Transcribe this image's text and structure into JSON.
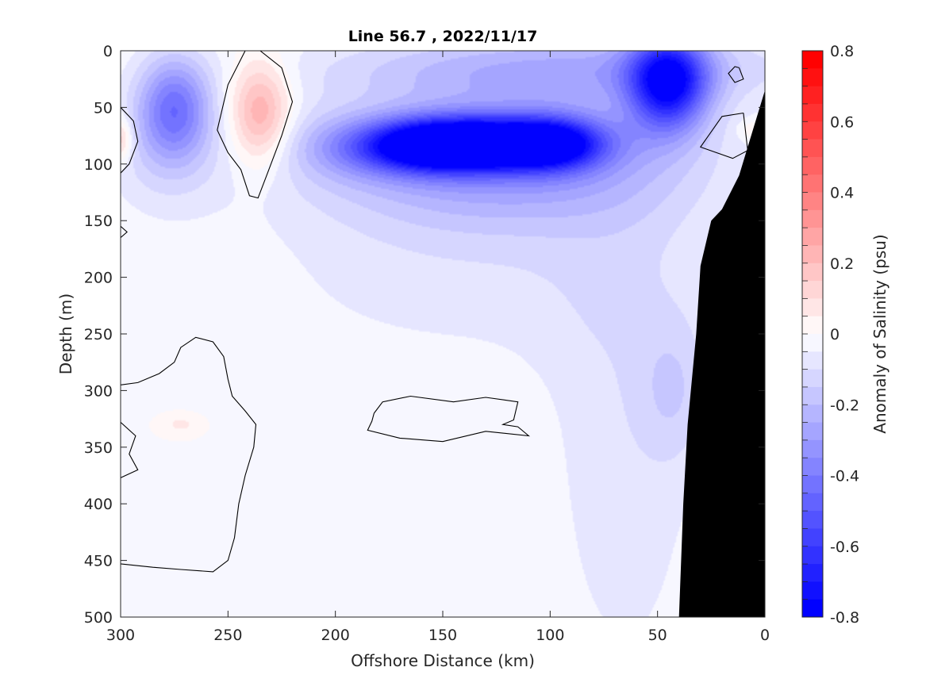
{
  "chart_data": {
    "type": "heatmap",
    "title": "Line 56.7 , 2022/11/17",
    "xlabel": "Offshore Distance (km)",
    "ylabel": "Depth (m)",
    "colorbar_label": "Anomaly of Salinity (psu)",
    "xlim": [
      300,
      0
    ],
    "ylim": [
      0,
      500
    ],
    "x_reversed": true,
    "y_reversed": true,
    "x_ticks": [
      300,
      250,
      200,
      150,
      100,
      50,
      0
    ],
    "y_ticks": [
      0,
      50,
      100,
      150,
      200,
      250,
      300,
      350,
      400,
      450,
      500
    ],
    "colorbar_ticks": [
      0.8,
      0.6,
      0.4,
      0.2,
      0,
      -0.2,
      -0.4,
      -0.6,
      -0.8
    ],
    "colorbar_tick_labels": [
      "0.8",
      "0.6",
      "0.4",
      "0.2",
      "0",
      "-0.2",
      "-0.4",
      "-0.6",
      "-0.8"
    ],
    "color_limits": [
      -0.8,
      0.8
    ],
    "color_step": 0.05,
    "colormap": {
      "negative": "#0000ff",
      "zero": "#ffffff",
      "positive": "#ff0000"
    },
    "bathymetry_color": "#000000",
    "contour_levels": [
      0
    ],
    "features": [
      {
        "name": "deep_core",
        "x": 140,
        "y": 82,
        "sx": 26,
        "sy": 16,
        "amp": -0.72
      },
      {
        "name": "core_west",
        "x": 160,
        "y": 85,
        "sx": 22,
        "sy": 16,
        "amp": -0.35
      },
      {
        "name": "core_east",
        "x": 100,
        "y": 82,
        "sx": 18,
        "sy": 16,
        "amp": -0.62
      },
      {
        "name": "broad_band",
        "x": 125,
        "y": 95,
        "sx": 60,
        "sy": 42,
        "amp": -0.32
      },
      {
        "name": "western_extension",
        "x": 195,
        "y": 85,
        "sx": 20,
        "sy": 20,
        "amp": -0.12
      },
      {
        "name": "surface_nearshore",
        "x": 45,
        "y": 28,
        "sx": 13,
        "sy": 30,
        "amp": -0.7
      },
      {
        "name": "surface_cap",
        "x": 95,
        "y": 15,
        "sx": 75,
        "sy": 22,
        "amp": -0.22
      },
      {
        "name": "mid_band",
        "x": 140,
        "y": 200,
        "sx": 75,
        "sy": 60,
        "amp": -0.07
      },
      {
        "name": "nearshore_column",
        "x": 65,
        "y": 330,
        "sx": 28,
        "sy": 190,
        "amp": -0.08
      },
      {
        "name": "nearshore_lens",
        "x": 42,
        "y": 300,
        "sx": 12,
        "sy": 45,
        "amp": -0.1
      },
      {
        "name": "offshore_low",
        "x": 275,
        "y": 50,
        "sx": 12,
        "sy": 32,
        "amp": -0.38
      },
      {
        "name": "offshore_low_deep",
        "x": 280,
        "y": 90,
        "sx": 20,
        "sy": 40,
        "amp": -0.1
      },
      {
        "name": "offshore_positive",
        "x": 235,
        "y": 55,
        "sx": 10,
        "sy": 32,
        "amp": 0.28
      },
      {
        "name": "positive_edge_west",
        "x": 300,
        "y": 78,
        "sx": 4,
        "sy": 14,
        "amp": 0.2
      },
      {
        "name": "positive_speck_deep",
        "x": 272,
        "y": 330,
        "sx": 5,
        "sy": 5,
        "amp": 0.07
      },
      {
        "name": "positive_speck_coast",
        "x": 5,
        "y": 70,
        "sx": 5,
        "sy": 6,
        "amp": 0.1
      }
    ],
    "contour_zero_lines": [
      [
        [
          235,
          0
        ],
        [
          225,
          15
        ],
        [
          220,
          45
        ],
        [
          225,
          75
        ],
        [
          232,
          110
        ],
        [
          236,
          130
        ],
        [
          240,
          128
        ],
        [
          244,
          105
        ],
        [
          250,
          90
        ],
        [
          255,
          70
        ],
        [
          250,
          30
        ],
        [
          242,
          0
        ]
      ],
      [
        [
          300,
          50
        ],
        [
          294,
          62
        ],
        [
          292,
          80
        ],
        [
          296,
          100
        ],
        [
          300,
          108
        ]
      ],
      [
        [
          300,
          155
        ],
        [
          297,
          160
        ],
        [
          300,
          165
        ]
      ],
      [
        [
          300,
          295
        ],
        [
          292,
          293
        ],
        [
          282,
          285
        ],
        [
          275,
          275
        ],
        [
          272,
          262
        ],
        [
          265,
          253
        ],
        [
          257,
          257
        ],
        [
          252,
          270
        ],
        [
          250,
          290
        ],
        [
          248,
          305
        ],
        [
          242,
          318
        ],
        [
          237,
          330
        ],
        [
          238,
          350
        ],
        [
          242,
          375
        ],
        [
          245,
          400
        ],
        [
          247,
          430
        ],
        [
          250,
          450
        ],
        [
          257,
          460
        ],
        [
          272,
          458
        ],
        [
          285,
          456
        ],
        [
          300,
          453
        ]
      ],
      [
        [
          300,
          328
        ],
        [
          293,
          340
        ],
        [
          296,
          356
        ],
        [
          292,
          370
        ],
        [
          300,
          377
        ]
      ],
      [
        [
          182,
          320
        ],
        [
          178,
          310
        ],
        [
          165,
          305
        ],
        [
          145,
          310
        ],
        [
          130,
          306
        ],
        [
          115,
          310
        ],
        [
          117,
          326
        ],
        [
          122,
          330
        ],
        [
          115,
          332
        ],
        [
          110,
          340
        ],
        [
          130,
          336
        ],
        [
          150,
          345
        ],
        [
          170,
          342
        ],
        [
          185,
          335
        ],
        [
          183,
          327
        ],
        [
          182,
          320
        ]
      ],
      [
        [
          12,
          15
        ],
        [
          10,
          25
        ],
        [
          14,
          28
        ],
        [
          17,
          20
        ],
        [
          14,
          14
        ],
        [
          12,
          15
        ]
      ],
      [
        [
          10,
          55
        ],
        [
          20,
          58
        ],
        [
          30,
          85
        ],
        [
          15,
          95
        ],
        [
          8,
          88
        ],
        [
          10,
          55
        ]
      ]
    ],
    "bathymetry": [
      [
        0,
        35
      ],
      [
        8,
        85
      ],
      [
        12,
        110
      ],
      [
        20,
        140
      ],
      [
        25,
        150
      ],
      [
        30,
        190
      ],
      [
        32,
        250
      ],
      [
        36,
        330
      ],
      [
        38,
        400
      ],
      [
        40,
        500
      ],
      [
        0,
        500
      ]
    ]
  }
}
